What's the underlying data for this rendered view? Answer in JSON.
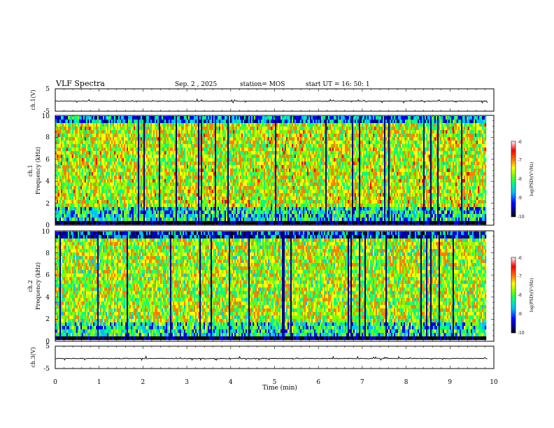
{
  "header": {
    "title": "VLF Spectra",
    "date": "Sep. 2 , 2025",
    "station": "station= MOS",
    "start": "start  UT =   16: 50: 1"
  },
  "chart_data": [
    {
      "type": "line",
      "name": "ch1-voltage",
      "ylabel": "ch.1(V)",
      "ylim": [
        -5,
        5
      ],
      "y_ticks": [
        "5",
        "-5"
      ],
      "baseline": -0.5
    },
    {
      "type": "heatmap",
      "name": "ch1-spectrogram",
      "ylabel_line1": "ch.1",
      "ylabel_line2": "Frequency (kHz)",
      "ylim": [
        0,
        10
      ],
      "y_ticks": [
        "0",
        "2",
        "4",
        "6",
        "8",
        "10"
      ],
      "colorbar": {
        "label": "log(PSD)(V²/Hz)",
        "range": [
          -10,
          -6
        ],
        "ticks": [
          "-6",
          "-7",
          "-8",
          "-9",
          "-10"
        ]
      }
    },
    {
      "type": "heatmap",
      "name": "ch2-spectrogram",
      "ylabel_line1": "ch.2",
      "ylabel_line2": "Frequency (kHz)",
      "ylim": [
        0,
        10
      ],
      "y_ticks": [
        "0",
        "2",
        "4",
        "6",
        "8",
        "10"
      ],
      "colorbar": {
        "label": "log(PSD)(V²/Hz)",
        "range": [
          -10,
          -6
        ],
        "ticks": [
          "-6",
          "-7",
          "-8",
          "-9",
          "-10"
        ]
      }
    },
    {
      "type": "line",
      "name": "ch3-voltage",
      "ylabel": "ch.3(V)",
      "ylim": [
        -5,
        5
      ],
      "y_ticks": [
        "5",
        "-5"
      ],
      "baseline": -0.5
    }
  ],
  "x_axis": {
    "label": "Time (min)",
    "range": [
      0,
      10
    ],
    "data_end": 9.85,
    "ticks": [
      "0",
      "1",
      "2",
      "3",
      "4",
      "5",
      "6",
      "7",
      "8",
      "9",
      "10"
    ]
  },
  "colors": {
    "axis": "#000000",
    "trace": "#000000",
    "colormap": [
      "#000000",
      "#00008b",
      "#0000ff",
      "#00bfff",
      "#00ff80",
      "#80ff00",
      "#ffff00",
      "#ff8000",
      "#ff0000",
      "#ffffff"
    ]
  }
}
